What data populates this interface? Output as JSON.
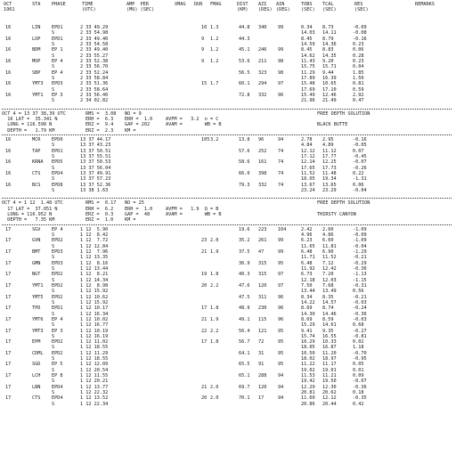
{
  "header": {
    "c0": "OCT\n1961",
    "c1": "STA",
    "c2": "PHASE",
    "c3": "TIME\n(UTC)",
    "c4": "AMP  PER\n(MU) (SEC)",
    "c5": "XMAG",
    "c6": "DUR",
    "c7": "FMAG",
    "c8": "DIST\n(KM)",
    "c9": "AZI\n(DEG)",
    "c10": "AIN\n(DEG)",
    "c11": "TOBS\n(SEC)",
    "c12": "TCAL\n(SEC)",
    "c13": "RES\n(SEC)",
    "c14": "REMARKS"
  },
  "sections": [
    {
      "rows": [
        [
          "16",
          "LIN",
          "EPD1",
          "2 33 49.29",
          "",
          "10",
          "1.3",
          "44.8",
          "340",
          "99",
          "0.34",
          "8.73",
          "-0.09"
        ],
        [
          "",
          "",
          "S",
          "2 33 54.98",
          "",
          "",
          "",
          "",
          "",
          "",
          "14.03",
          "14.11",
          "-0.08"
        ],
        [
          "16",
          "LOP",
          "EPD1",
          "2 33 49.40",
          "",
          "9",
          "1.2",
          "44.3",
          "",
          "",
          "8.45",
          "8.79",
          "-0.16"
        ],
        [
          "",
          "",
          "S",
          "2 33 54.58",
          "",
          "",
          "",
          "",
          "",
          "",
          "14.59",
          "14.36",
          "0.23"
        ],
        [
          "16",
          "BDM",
          "EP 1",
          "2 33 49.40",
          "",
          "9",
          "1.2",
          "45.1",
          "246",
          "99",
          "8.45",
          "8.83",
          "0.06"
        ],
        [
          "",
          "",
          "S",
          "2 33 55.27",
          "",
          "",
          "",
          "",
          "",
          "",
          "14.62",
          "14.35",
          "0.28"
        ],
        [
          "16",
          "MOP",
          "EP 4",
          "2 33 52.38",
          "",
          "9",
          "1.2",
          "53.6",
          "211",
          "98",
          "11.43",
          "9.20",
          "0.23"
        ],
        [
          "",
          "",
          "S",
          "2 33 56.70",
          "",
          "",
          "",
          "",
          "",
          "",
          "15.75",
          "15.71",
          "0.04"
        ],
        [
          "16",
          "SBP",
          "EP 4",
          "2 33 52.24",
          "",
          "",
          "",
          "56.5",
          "323",
          "98",
          "11.29",
          "9.44",
          "1.85"
        ],
        [
          "",
          "",
          "S",
          "2 33 58.84",
          "",
          "",
          "",
          "",
          "",
          "",
          "17.89",
          "16.39",
          "1.50"
        ],
        [
          "16",
          "YMT3",
          "EPD3",
          "2 33 51.36",
          "",
          "15",
          "1.7",
          "60.1",
          "294",
          "97",
          "15.48",
          "10.65",
          "0.81"
        ],
        [
          "",
          "",
          "S",
          "2 33 58.64",
          "",
          "",
          "",
          "",
          "",
          "",
          "17.69",
          "17.10",
          "0.59"
        ],
        [
          "16",
          "YMT1",
          "EP 3",
          "2 33 56.40",
          "",
          "",
          "",
          "72.8",
          "332",
          "96",
          "15.49",
          "12.46",
          "2.92"
        ],
        [
          "",
          "",
          "S",
          "2 34 02.82",
          "",
          "",
          "",
          "",
          "",
          "",
          "21.96",
          "21.49",
          "0.47"
        ]
      ]
    },
    {
      "summary": [
        [
          "OCT 4 = 13 37 38,39 UTC",
          "RMS =  3.08",
          "NO = 9",
          "",
          "FREE DEPTH SOLUTION"
        ],
        [
          "  16 LAT =  35.341 N",
          "ERH =  6.3",
          "ERH =  1.0",
          "AVFM =   3.2  n = C",
          ""
        ],
        [
          "  LONG = 116.598 N",
          "ERZ =  9.4",
          "GAP = 202",
          "AVAM =        WB = B",
          "BLACK BUTTE"
        ],
        [
          "  DEPTH =   1.79 KM",
          "ERZ =  2.3",
          "KM =",
          "",
          ""
        ]
      ],
      "rows": [
        [
          "16",
          "MCR",
          "EPD0",
          "13 37 44.17",
          "",
          "105",
          "3.2",
          "13.8",
          "96",
          "94",
          "2.78",
          "2.95",
          "-0.16"
        ],
        [
          "",
          "",
          "S",
          "13 37 43.23",
          "",
          "",
          "",
          "",
          "",
          "",
          "4.84",
          "4.89",
          "-0.05"
        ],
        [
          "16",
          "TAP",
          "EPD1",
          "13 37 50.51",
          "",
          "",
          "",
          "57.6",
          "252",
          "74",
          "12.12",
          "11.12",
          "0.07"
        ],
        [
          "",
          "",
          "S",
          "13 37 55.51",
          "",
          "",
          "",
          "",
          "",
          "",
          "17.12",
          "17.77",
          "-0.45"
        ],
        [
          "16",
          "KRNA",
          "EPD5",
          "13 37 50.53",
          "",
          "",
          "",
          "58.6",
          "161",
          "74",
          "12.14",
          "12.25",
          "-0.07"
        ],
        [
          "",
          "",
          "S",
          "13 37 56.04",
          "",
          "",
          "",
          "",
          "",
          "",
          "17.65",
          "17.73",
          "-0.26"
        ],
        [
          "16",
          "CTS",
          "EPD4",
          "13 37 49.91",
          "",
          "",
          "",
          "66.0",
          "398",
          "74",
          "11.52",
          "11.48",
          "0.22"
        ],
        [
          "",
          "",
          "S",
          "13 37 57.23",
          "",
          "",
          "",
          "",
          "",
          "",
          "18.05",
          "19.34",
          "-1.31"
        ],
        [
          "16",
          "BCS",
          "EPD8",
          "13 37 52.36",
          "",
          "",
          "",
          "79.3",
          "332",
          "74",
          "13.67",
          "13.65",
          "0.06"
        ],
        [
          "",
          "",
          "S",
          "13 38 1.63",
          "",
          "",
          "",
          "",
          "",
          "",
          "23.24",
          "23.29",
          "-0.04"
        ]
      ]
    },
    {
      "summary": [
        [
          "OCT 4 = 1 12  1.48 UTC",
          "RMS =  0.17",
          "NO = 25",
          "",
          "FREE DEPTH SOLUTION"
        ],
        [
          "  17 LAT =  37.051 N",
          "ERH =  6.2",
          "ERH =  1.0",
          "AVFM =   1.9  Q = B",
          ""
        ],
        [
          "  LONG = 116.952 N",
          "ERZ =  0.3",
          "GAP =  48",
          "AVAM =        WB = B",
          "THIRSTY CANYON"
        ],
        [
          "  DEPTH =   7.35 KM",
          "ERZ =  1.0",
          "KM =",
          "",
          ""
        ]
      ],
      "rows": [
        [
          "17",
          "SGV",
          "EP 4",
          "1 12  5.90",
          "",
          "",
          "",
          "19.6",
          "223",
          "104",
          "2.42",
          "2.60",
          "-1.09"
        ],
        [
          "",
          "",
          "S",
          "1 12  8.42",
          "",
          "",
          "",
          "",
          "",
          "",
          "4.96",
          "4.86",
          "-0.09"
        ],
        [
          "17",
          "GVN",
          "EPD2",
          "1 12  7.72",
          "",
          "23",
          "2.0",
          "35.2",
          "261",
          "99",
          "6.23",
          "6.60",
          "-1.09"
        ],
        [
          "",
          "",
          "S",
          "1 12 12.84",
          "",
          "",
          "",
          "",
          "",
          "",
          "11.65",
          "11.81",
          "-0.04"
        ],
        [
          "17",
          "BMT",
          "EPD3",
          "1 12  7.96",
          "",
          "21",
          "1.9",
          "37.5",
          "47",
          "99",
          "6.48",
          "6.90",
          "-1.29"
        ],
        [
          "",
          "",
          "S",
          "1 12 13.35",
          "",
          "",
          "",
          "",
          "",
          "",
          "11.71",
          "11.52",
          "-0.21"
        ],
        [
          "17",
          "GMN",
          "EPD3",
          "1 12  8.16",
          "",
          "",
          "",
          "36.9",
          "315",
          "95",
          "6.48",
          "7.12",
          "-0.29"
        ],
        [
          "",
          "",
          "S",
          "1 12 13.44",
          "",
          "",
          "",
          "",
          "",
          "",
          "11.92",
          "12.42",
          "-0.36"
        ],
        [
          "17",
          "NGT",
          "EPD2",
          "1 12  8.21",
          "",
          "19",
          "1.8",
          "40.3",
          "315",
          "97",
          "6.73",
          "7.20",
          "-1.13"
        ],
        [
          "",
          "",
          "S",
          "1 12 14.34",
          "",
          "",
          "",
          "",
          "",
          "",
          "12.18",
          "12.03",
          "-1.15"
        ],
        [
          "17",
          "YMT1",
          "EPD2",
          "1 12  8.98",
          "",
          "20",
          "2.2",
          "47.6",
          "120",
          "97",
          "7.50",
          "7.68",
          "-0.31"
        ],
        [
          "",
          "",
          "S",
          "1 12 15.92",
          "",
          "",
          "",
          "",
          "",
          "",
          "13.44",
          "13.49",
          "0.56"
        ],
        [
          "17",
          "YMT5",
          "EPD2",
          "1 12 10.62",
          "",
          "",
          "",
          "47.5",
          "311",
          "96",
          "8.34",
          "8.35",
          "-0.21"
        ],
        [
          "",
          "",
          "S",
          "1 12 15.92",
          "",
          "",
          "",
          "",
          "",
          "",
          "14.22",
          "14.57",
          "-0.03"
        ],
        [
          "17",
          "TPD",
          "EPD1",
          "1 12 10.17",
          "",
          "17",
          "1.8",
          "48.9",
          "230",
          "96",
          "8.69",
          "8.74",
          "-0.24"
        ],
        [
          "",
          "",
          "S",
          "1 12 16.34",
          "",
          "",
          "",
          "",
          "",
          "",
          "14.30",
          "14.46",
          "-0.36"
        ],
        [
          "17",
          "YMT6",
          "EP 4",
          "1 12 10.02",
          "",
          "21",
          "1.9",
          "49.1",
          "115",
          "96",
          "8.69",
          "8.59",
          "-0.03"
        ],
        [
          "",
          "",
          "S",
          "1 12 16.77",
          "",
          "",
          "",
          "",
          "",
          "",
          "15.29",
          "14.61",
          "0.68"
        ],
        [
          "17",
          "YMT3",
          "EP 3",
          "1 12 10.19",
          "",
          "22",
          "2.2",
          "56.4",
          "121",
          "95",
          "9.41",
          "9.35",
          "-0.27"
        ],
        [
          "",
          "",
          "S",
          "1 12 16.19",
          "",
          "",
          "",
          "",
          "",
          "",
          "15.74",
          "16.55",
          "-0.81"
        ],
        [
          "17",
          "EPM",
          "EPD2",
          "1 12 11.02",
          "",
          "17",
          "1.8",
          "56.7",
          "72",
          "95",
          "10.29",
          "10.33",
          "0.02"
        ],
        [
          "",
          "",
          "S",
          "1 12 18.55",
          "",
          "",
          "",
          "",
          "",
          "",
          "18.05",
          "16.87",
          "1.18"
        ],
        [
          "17",
          "CDML",
          "EPD2",
          "1 12 11.29",
          "",
          "",
          "",
          "64.1",
          "31",
          "95",
          "10.50",
          "11.20",
          "-0.70"
        ],
        [
          "",
          "",
          "S",
          "1 12 18.55",
          "",
          "",
          "",
          "",
          "",
          "",
          "18.02",
          "18.97",
          "-0.95"
        ],
        [
          "17",
          "SGD",
          "EP 5",
          "1 12 12.09",
          "",
          "",
          "",
          "65.5",
          "91",
          "95",
          "11.22",
          "11.17",
          "0.05"
        ],
        [
          "",
          "",
          "S",
          "1 12 20.54",
          "",
          "",
          "",
          "",
          "",
          "",
          "19.02",
          "19.01",
          "0.01"
        ],
        [
          "17",
          "LCH",
          "EP 8",
          "1 12 11.55",
          "",
          "",
          "",
          "65.1",
          "288",
          "94",
          "11.53",
          "11.21",
          "0.09"
        ],
        [
          "",
          "",
          "S",
          "1 12 20.21",
          "",
          "",
          "",
          "",
          "",
          "",
          "19.42",
          "19.50",
          "-0.07"
        ],
        [
          "17",
          "LBN",
          "EPD4",
          "1 12 13.77",
          "",
          "21",
          "2.0",
          "69.7",
          "120",
          "94",
          "12.29",
          "12.30",
          "-0.36"
        ],
        [
          "",
          "",
          "S",
          "1 12 22.32",
          "",
          "",
          "",
          "",
          "",
          "",
          "20.81",
          "20.62",
          "0.18"
        ],
        [
          "17",
          "CTS",
          "EPD4",
          "1 12 13.52",
          "",
          "20",
          "2.0",
          "70.1",
          "17",
          "94",
          "11.60",
          "12.12",
          "-0.35"
        ],
        [
          "",
          "",
          "S",
          "1 12 22.34",
          "",
          "",
          "",
          "",
          "",
          "",
          "20.86",
          "20.44",
          "0.42"
        ]
      ]
    }
  ]
}
